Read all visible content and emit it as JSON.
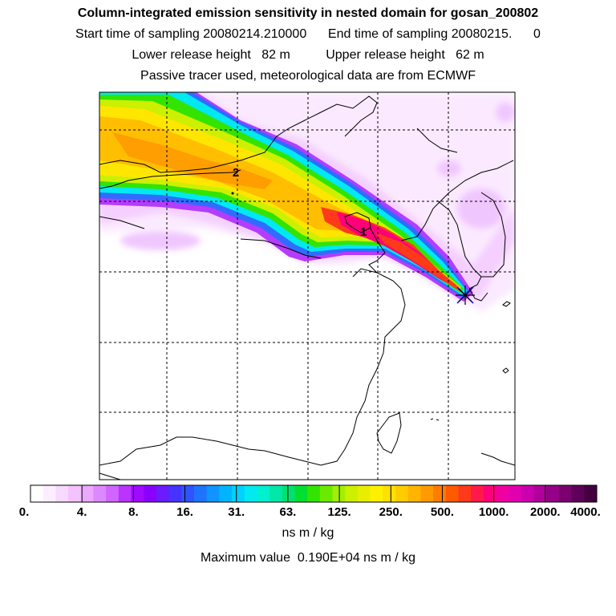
{
  "header": {
    "title": "Column-integrated emission sensitivity in nested domain for gosan_200802",
    "sampling": "Start time of sampling 20080214.210000      End time of sampling 20080215.      0",
    "release": "Lower release height   82 m          Upper release height   62 m",
    "tracer": "Passive tracer used, meteorological data are from ECMWF"
  },
  "map": {
    "labels": [
      "1",
      "2"
    ],
    "receptor_marker": "star-cross"
  },
  "colorbar": {
    "ticks": [
      "0.",
      "4.",
      "8.",
      "16.",
      "31.",
      "63.",
      "125.",
      "250.",
      "500.",
      "1000.",
      "2000.",
      "4000."
    ],
    "colors": [
      "#ffffff",
      "#fdeeff",
      "#f8d9ff",
      "#f3c2ff",
      "#eaa8ff",
      "#de88ff",
      "#d066ff",
      "#bb33ff",
      "#a00aff",
      "#8a00ff",
      "#6a1bff",
      "#4633ff",
      "#2f54ff",
      "#1e74ff",
      "#1194ff",
      "#00b4ff",
      "#00d2ff",
      "#00eaf0",
      "#00f0d0",
      "#00e8a8",
      "#00e070",
      "#00de30",
      "#33e400",
      "#6aea00",
      "#a2f000",
      "#ccf000",
      "#e8ee00",
      "#fff000",
      "#ffe000",
      "#ffcc00",
      "#ffb400",
      "#ff9a00",
      "#ff7c00",
      "#ff5a00",
      "#ff3a1a",
      "#ff1a4a",
      "#ff007a",
      "#f000a0",
      "#e000b0",
      "#ca00b0",
      "#b0009a",
      "#940088",
      "#7a0070",
      "#5e0058",
      "#44003e"
    ],
    "unit": "ns m / kg",
    "max_value": "Maximum value  0.190E+04 ns m / kg"
  }
}
